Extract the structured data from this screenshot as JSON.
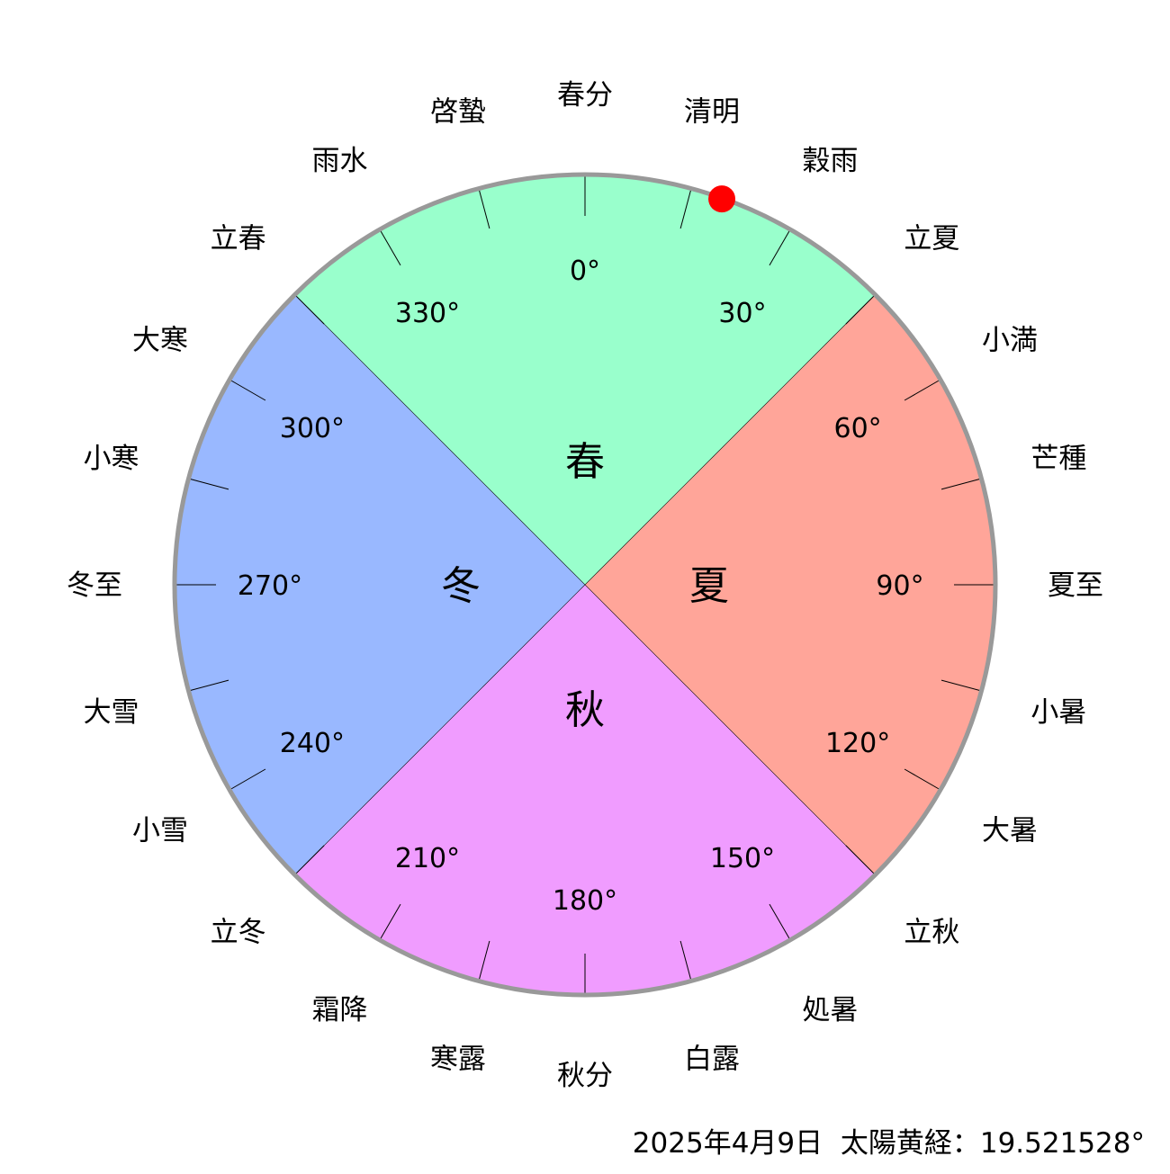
{
  "seasons": [
    {
      "label": "春",
      "start_deg": 315,
      "end_deg": 45,
      "color": "#99ffcc"
    },
    {
      "label": "夏",
      "start_deg": 45,
      "end_deg": 135,
      "color": "#ffa599"
    },
    {
      "label": "秋",
      "start_deg": 135,
      "end_deg": 225,
      "color": "#f09cff"
    },
    {
      "label": "冬",
      "start_deg": 225,
      "end_deg": 315,
      "color": "#99b8ff"
    }
  ],
  "degree_labels": [
    "0°",
    "30°",
    "60°",
    "90°",
    "120°",
    "150°",
    "180°",
    "210°",
    "240°",
    "270°",
    "300°",
    "330°"
  ],
  "solar_terms": [
    "春分",
    "清明",
    "穀雨",
    "立夏",
    "小満",
    "芒種",
    "夏至",
    "小暑",
    "大暑",
    "立秋",
    "処暑",
    "白露",
    "秋分",
    "寒露",
    "霜降",
    "立冬",
    "小雪",
    "大雪",
    "冬至",
    "小寒",
    "大寒",
    "立春",
    "雨水",
    "啓蟄"
  ],
  "sun": {
    "longitude_deg": 19.521528,
    "color": "#ff0000"
  },
  "border_color": "#999999",
  "footer": {
    "date": "2025年4月9日",
    "label": "太陽黄経：",
    "value": "19.521528°"
  }
}
